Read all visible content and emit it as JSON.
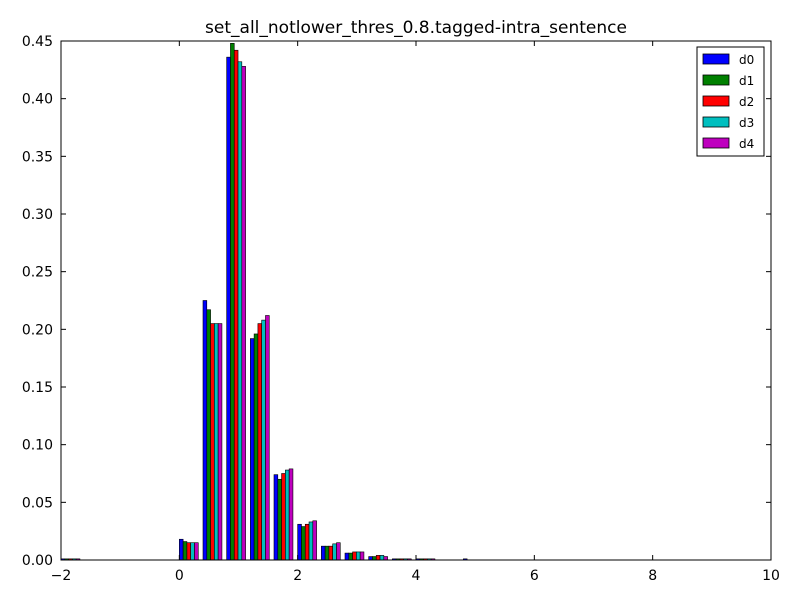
{
  "chart_data": {
    "type": "bar",
    "title": "set_all_notlower_thres_0.8.tagged-intra_sentence",
    "xlabel": "",
    "ylabel": "",
    "xlim": [
      -2,
      10
    ],
    "ylim": [
      0,
      0.45
    ],
    "x_ticks": [
      -2,
      0,
      2,
      4,
      6,
      8,
      10
    ],
    "y_ticks": [
      0.0,
      0.05,
      0.1,
      0.15,
      0.2,
      0.25,
      0.3,
      0.35,
      0.4,
      0.45
    ],
    "x_tick_labels": [
      "−2",
      "0",
      "2",
      "4",
      "6",
      "8",
      "10"
    ],
    "y_tick_labels": [
      "0.00",
      "0.05",
      "0.10",
      "0.15",
      "0.20",
      "0.25",
      "0.30",
      "0.35",
      "0.40",
      "0.45"
    ],
    "bin_start": [
      -2.0,
      -1.6,
      -1.2,
      -0.8,
      -0.4,
      0.0,
      0.4,
      0.8,
      1.2,
      1.6,
      2.0,
      2.4,
      2.8,
      3.2,
      3.6,
      4.0,
      4.4,
      4.8,
      5.2,
      5.6,
      6.0,
      6.4,
      6.8,
      7.2,
      7.6,
      8.0,
      8.4,
      8.8,
      9.2,
      9.6
    ],
    "bin_width": 0.4,
    "legend_position": "top-right",
    "series": [
      {
        "name": "d0",
        "color": "#0000ff",
        "values": [
          0.001,
          0,
          0,
          0,
          0,
          0.018,
          0.225,
          0.436,
          0.192,
          0.074,
          0.031,
          0.012,
          0.006,
          0.003,
          0.001,
          0.001,
          0,
          0.001,
          0,
          0,
          0,
          0,
          0,
          0,
          0,
          0,
          0,
          0,
          0,
          0
        ]
      },
      {
        "name": "d1",
        "color": "#008000",
        "values": [
          0.001,
          0,
          0,
          0,
          0,
          0.016,
          0.217,
          0.448,
          0.196,
          0.07,
          0.029,
          0.012,
          0.006,
          0.003,
          0.001,
          0.001,
          0,
          0,
          0,
          0,
          0,
          0,
          0,
          0,
          0,
          0,
          0,
          0,
          0,
          0
        ]
      },
      {
        "name": "d2",
        "color": "#ff0000",
        "values": [
          0.001,
          0,
          0,
          0,
          0,
          0.015,
          0.205,
          0.442,
          0.205,
          0.075,
          0.031,
          0.012,
          0.007,
          0.004,
          0.001,
          0.001,
          0,
          0,
          0,
          0,
          0,
          0,
          0,
          0,
          0,
          0,
          0,
          0,
          0,
          0
        ]
      },
      {
        "name": "d3",
        "color": "#00bfbf",
        "values": [
          0.001,
          0,
          0,
          0,
          0,
          0.015,
          0.205,
          0.432,
          0.208,
          0.078,
          0.033,
          0.014,
          0.007,
          0.004,
          0.001,
          0.001,
          0,
          0,
          0,
          0,
          0,
          0,
          0,
          0,
          0,
          0,
          0,
          0,
          0,
          0
        ]
      },
      {
        "name": "d4",
        "color": "#bf00bf",
        "values": [
          0.001,
          0,
          0,
          0,
          0,
          0.015,
          0.205,
          0.428,
          0.212,
          0.079,
          0.034,
          0.015,
          0.007,
          0.003,
          0.001,
          0.001,
          0,
          0,
          0,
          0,
          0,
          0,
          0,
          0,
          0,
          0,
          0,
          0,
          0,
          0
        ]
      }
    ]
  }
}
